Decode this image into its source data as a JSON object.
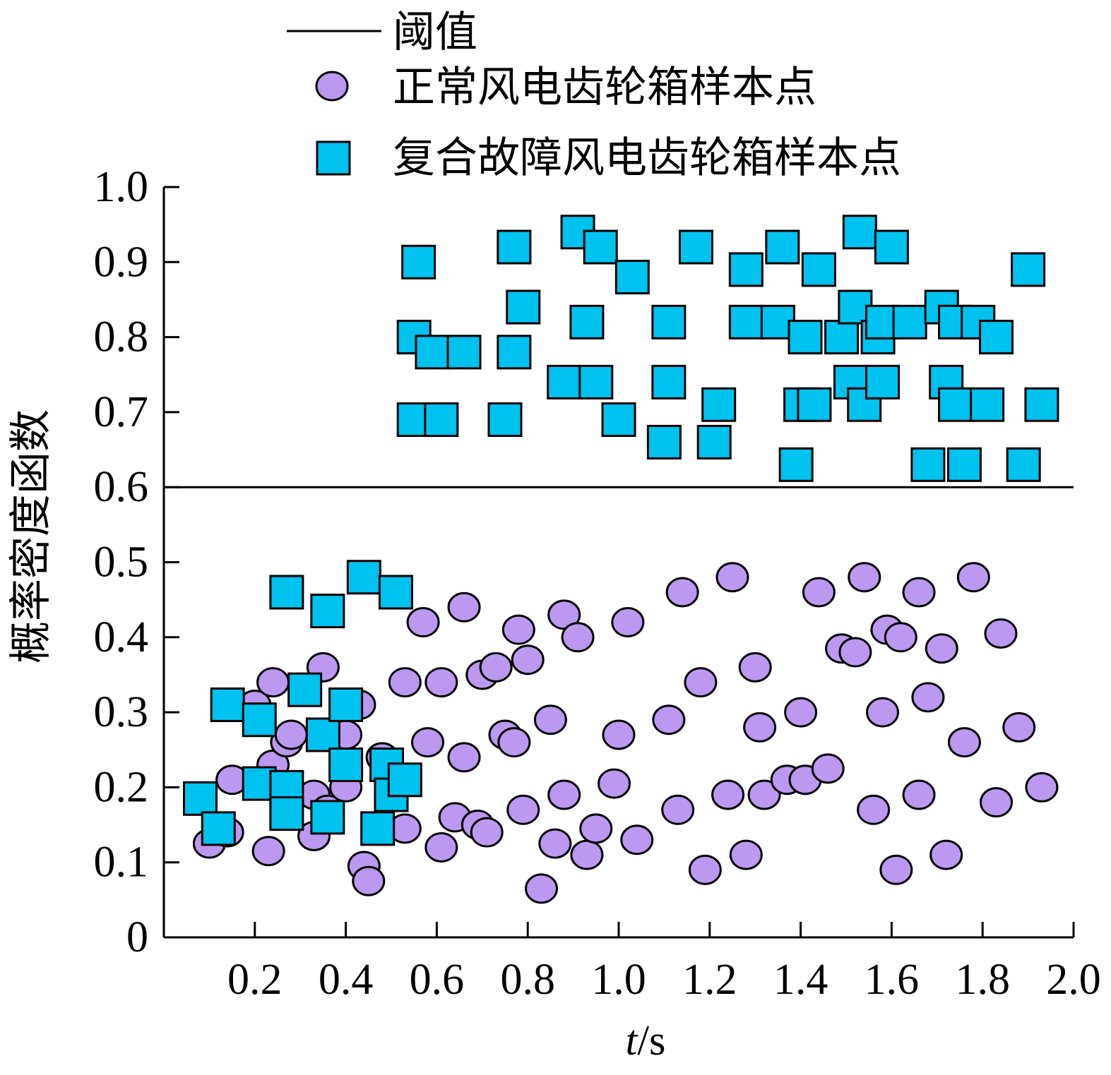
{
  "chart_data": {
    "type": "scatter",
    "xlabel_var": "t",
    "xlabel_unit": "/s",
    "ylabel": "概率密度函数",
    "xlim": [
      0.0,
      2.0
    ],
    "ylim": [
      0.0,
      1.0
    ],
    "xticks": [
      "0.2",
      "0.4",
      "0.6",
      "0.8",
      "1.0",
      "1.2",
      "1.4",
      "1.6",
      "1.8",
      "2.0"
    ],
    "yticks": [
      "0",
      "0.1",
      "0.2",
      "0.3",
      "0.4",
      "0.5",
      "0.6",
      "0.7",
      "0.8",
      "0.9",
      "1.0"
    ],
    "threshold": {
      "name": "阈值",
      "value": 0.6
    },
    "legend_position": "top",
    "series": [
      {
        "name": "正常风电齿轮箱样本点",
        "marker": "circle",
        "color": "#bb99f0",
        "points": [
          [
            0.1,
            0.125
          ],
          [
            0.14,
            0.14
          ],
          [
            0.15,
            0.21
          ],
          [
            0.2,
            0.31
          ],
          [
            0.23,
            0.115
          ],
          [
            0.24,
            0.34
          ],
          [
            0.24,
            0.23
          ],
          [
            0.27,
            0.26
          ],
          [
            0.28,
            0.27
          ],
          [
            0.27,
            0.2
          ],
          [
            0.33,
            0.19
          ],
          [
            0.33,
            0.135
          ],
          [
            0.35,
            0.36
          ],
          [
            0.36,
            0.17
          ],
          [
            0.4,
            0.2
          ],
          [
            0.4,
            0.27
          ],
          [
            0.43,
            0.31
          ],
          [
            0.44,
            0.095
          ],
          [
            0.45,
            0.075
          ],
          [
            0.48,
            0.24
          ],
          [
            0.53,
            0.34
          ],
          [
            0.53,
            0.145
          ],
          [
            0.57,
            0.42
          ],
          [
            0.58,
            0.26
          ],
          [
            0.61,
            0.34
          ],
          [
            0.61,
            0.12
          ],
          [
            0.64,
            0.16
          ],
          [
            0.66,
            0.44
          ],
          [
            0.66,
            0.24
          ],
          [
            0.69,
            0.15
          ],
          [
            0.7,
            0.35
          ],
          [
            0.71,
            0.14
          ],
          [
            0.73,
            0.36
          ],
          [
            0.75,
            0.27
          ],
          [
            0.77,
            0.26
          ],
          [
            0.78,
            0.41
          ],
          [
            0.79,
            0.17
          ],
          [
            0.8,
            0.37
          ],
          [
            0.83,
            0.065
          ],
          [
            0.85,
            0.29
          ],
          [
            0.86,
            0.125
          ],
          [
            0.88,
            0.19
          ],
          [
            0.88,
            0.43
          ],
          [
            0.91,
            0.4
          ],
          [
            0.93,
            0.11
          ],
          [
            0.95,
            0.145
          ],
          [
            0.99,
            0.205
          ],
          [
            1.0,
            0.27
          ],
          [
            1.02,
            0.42
          ],
          [
            1.04,
            0.13
          ],
          [
            1.11,
            0.29
          ],
          [
            1.13,
            0.17
          ],
          [
            1.14,
            0.46
          ],
          [
            1.18,
            0.34
          ],
          [
            1.19,
            0.09
          ],
          [
            1.24,
            0.19
          ],
          [
            1.25,
            0.48
          ],
          [
            1.28,
            0.11
          ],
          [
            1.3,
            0.36
          ],
          [
            1.31,
            0.28
          ],
          [
            1.32,
            0.19
          ],
          [
            1.37,
            0.21
          ],
          [
            1.4,
            0.3
          ],
          [
            1.41,
            0.21
          ],
          [
            1.44,
            0.46
          ],
          [
            1.46,
            0.225
          ],
          [
            1.49,
            0.385
          ],
          [
            1.52,
            0.38
          ],
          [
            1.54,
            0.48
          ],
          [
            1.56,
            0.17
          ],
          [
            1.58,
            0.3
          ],
          [
            1.59,
            0.41
          ],
          [
            1.61,
            0.09
          ],
          [
            1.62,
            0.4
          ],
          [
            1.66,
            0.19
          ],
          [
            1.66,
            0.46
          ],
          [
            1.68,
            0.32
          ],
          [
            1.71,
            0.385
          ],
          [
            1.72,
            0.11
          ],
          [
            1.76,
            0.26
          ],
          [
            1.78,
            0.48
          ],
          [
            1.83,
            0.18
          ],
          [
            1.84,
            0.405
          ],
          [
            1.88,
            0.28
          ],
          [
            1.93,
            0.2
          ]
        ]
      },
      {
        "name": "复合故障风电齿轮箱样本点",
        "marker": "square",
        "color": "#00c2ee",
        "points": [
          [
            0.08,
            0.185
          ],
          [
            0.12,
            0.145
          ],
          [
            0.14,
            0.31
          ],
          [
            0.21,
            0.205
          ],
          [
            0.21,
            0.29
          ],
          [
            0.27,
            0.2
          ],
          [
            0.27,
            0.165
          ],
          [
            0.27,
            0.46
          ],
          [
            0.31,
            0.33
          ],
          [
            0.35,
            0.27
          ],
          [
            0.36,
            0.16
          ],
          [
            0.36,
            0.435
          ],
          [
            0.4,
            0.23
          ],
          [
            0.4,
            0.31
          ],
          [
            0.44,
            0.48
          ],
          [
            0.47,
            0.145
          ],
          [
            0.49,
            0.23
          ],
          [
            0.5,
            0.19
          ],
          [
            0.51,
            0.46
          ],
          [
            0.53,
            0.21
          ],
          [
            0.55,
            0.8
          ],
          [
            0.55,
            0.69
          ],
          [
            0.56,
            0.9
          ],
          [
            0.59,
            0.78
          ],
          [
            0.61,
            0.69
          ],
          [
            0.66,
            0.78
          ],
          [
            0.75,
            0.69
          ],
          [
            0.77,
            0.92
          ],
          [
            0.77,
            0.78
          ],
          [
            0.79,
            0.84
          ],
          [
            0.88,
            0.74
          ],
          [
            0.91,
            0.94
          ],
          [
            0.93,
            0.82
          ],
          [
            0.95,
            0.74
          ],
          [
            0.96,
            0.92
          ],
          [
            1.0,
            0.69
          ],
          [
            1.03,
            0.88
          ],
          [
            1.1,
            0.66
          ],
          [
            1.11,
            0.74
          ],
          [
            1.11,
            0.82
          ],
          [
            1.17,
            0.92
          ],
          [
            1.21,
            0.66
          ],
          [
            1.22,
            0.71
          ],
          [
            1.28,
            0.89
          ],
          [
            1.28,
            0.82
          ],
          [
            1.35,
            0.82
          ],
          [
            1.36,
            0.92
          ],
          [
            1.39,
            0.63
          ],
          [
            1.4,
            0.71
          ],
          [
            1.41,
            0.8
          ],
          [
            1.43,
            0.71
          ],
          [
            1.44,
            0.89
          ],
          [
            1.49,
            0.8
          ],
          [
            1.51,
            0.74
          ],
          [
            1.52,
            0.84
          ],
          [
            1.53,
            0.94
          ],
          [
            1.54,
            0.71
          ],
          [
            1.57,
            0.8
          ],
          [
            1.58,
            0.82
          ],
          [
            1.58,
            0.74
          ],
          [
            1.6,
            0.92
          ],
          [
            1.64,
            0.82
          ],
          [
            1.68,
            0.63
          ],
          [
            1.71,
            0.84
          ],
          [
            1.72,
            0.74
          ],
          [
            1.74,
            0.71
          ],
          [
            1.74,
            0.82
          ],
          [
            1.76,
            0.63
          ],
          [
            1.79,
            0.82
          ],
          [
            1.81,
            0.71
          ],
          [
            1.83,
            0.8
          ],
          [
            1.89,
            0.63
          ],
          [
            1.9,
            0.89
          ],
          [
            1.93,
            0.71
          ]
        ]
      }
    ]
  }
}
